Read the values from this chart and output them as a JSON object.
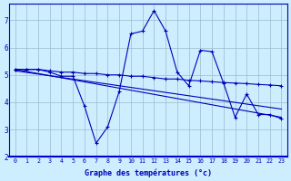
{
  "xlabel": "Graphe des températures (°c)",
  "bg_color": "#cceeff",
  "line_color": "#0000bb",
  "xlim": [
    -0.5,
    23.5
  ],
  "ylim": [
    2.0,
    7.6
  ],
  "yticks": [
    2,
    3,
    4,
    5,
    6,
    7
  ],
  "xticks": [
    0,
    1,
    2,
    3,
    4,
    5,
    6,
    7,
    8,
    9,
    10,
    11,
    12,
    13,
    14,
    15,
    16,
    17,
    18,
    19,
    20,
    21,
    22,
    23
  ],
  "series1_x": [
    0,
    1,
    2,
    3,
    4,
    5,
    6,
    7,
    8,
    9,
    10,
    11,
    12,
    13,
    14,
    15,
    16,
    17,
    18,
    19,
    20,
    21,
    22,
    23
  ],
  "series1_y": [
    5.2,
    5.2,
    5.2,
    5.1,
    4.95,
    4.95,
    3.85,
    2.5,
    3.1,
    4.4,
    6.5,
    6.6,
    7.35,
    6.6,
    5.1,
    4.6,
    5.9,
    5.85,
    4.7,
    3.45,
    4.3,
    3.55,
    3.55,
    3.4
  ],
  "series2_x": [
    0,
    1,
    2,
    3,
    4,
    5,
    6,
    7,
    8,
    9,
    10,
    11,
    12,
    13,
    14,
    15,
    16,
    17,
    18,
    19,
    20,
    21,
    22,
    23
  ],
  "series2_y": [
    5.2,
    5.2,
    5.2,
    5.15,
    5.1,
    5.1,
    5.05,
    5.05,
    5.0,
    5.0,
    4.95,
    4.95,
    4.9,
    4.85,
    4.85,
    4.8,
    4.78,
    4.75,
    4.72,
    4.7,
    4.68,
    4.65,
    4.63,
    4.6
  ],
  "series3_x": [
    0,
    23
  ],
  "series3_y": [
    5.2,
    3.45
  ],
  "series4_x": [
    0,
    23
  ],
  "series4_y": [
    5.15,
    3.75
  ]
}
